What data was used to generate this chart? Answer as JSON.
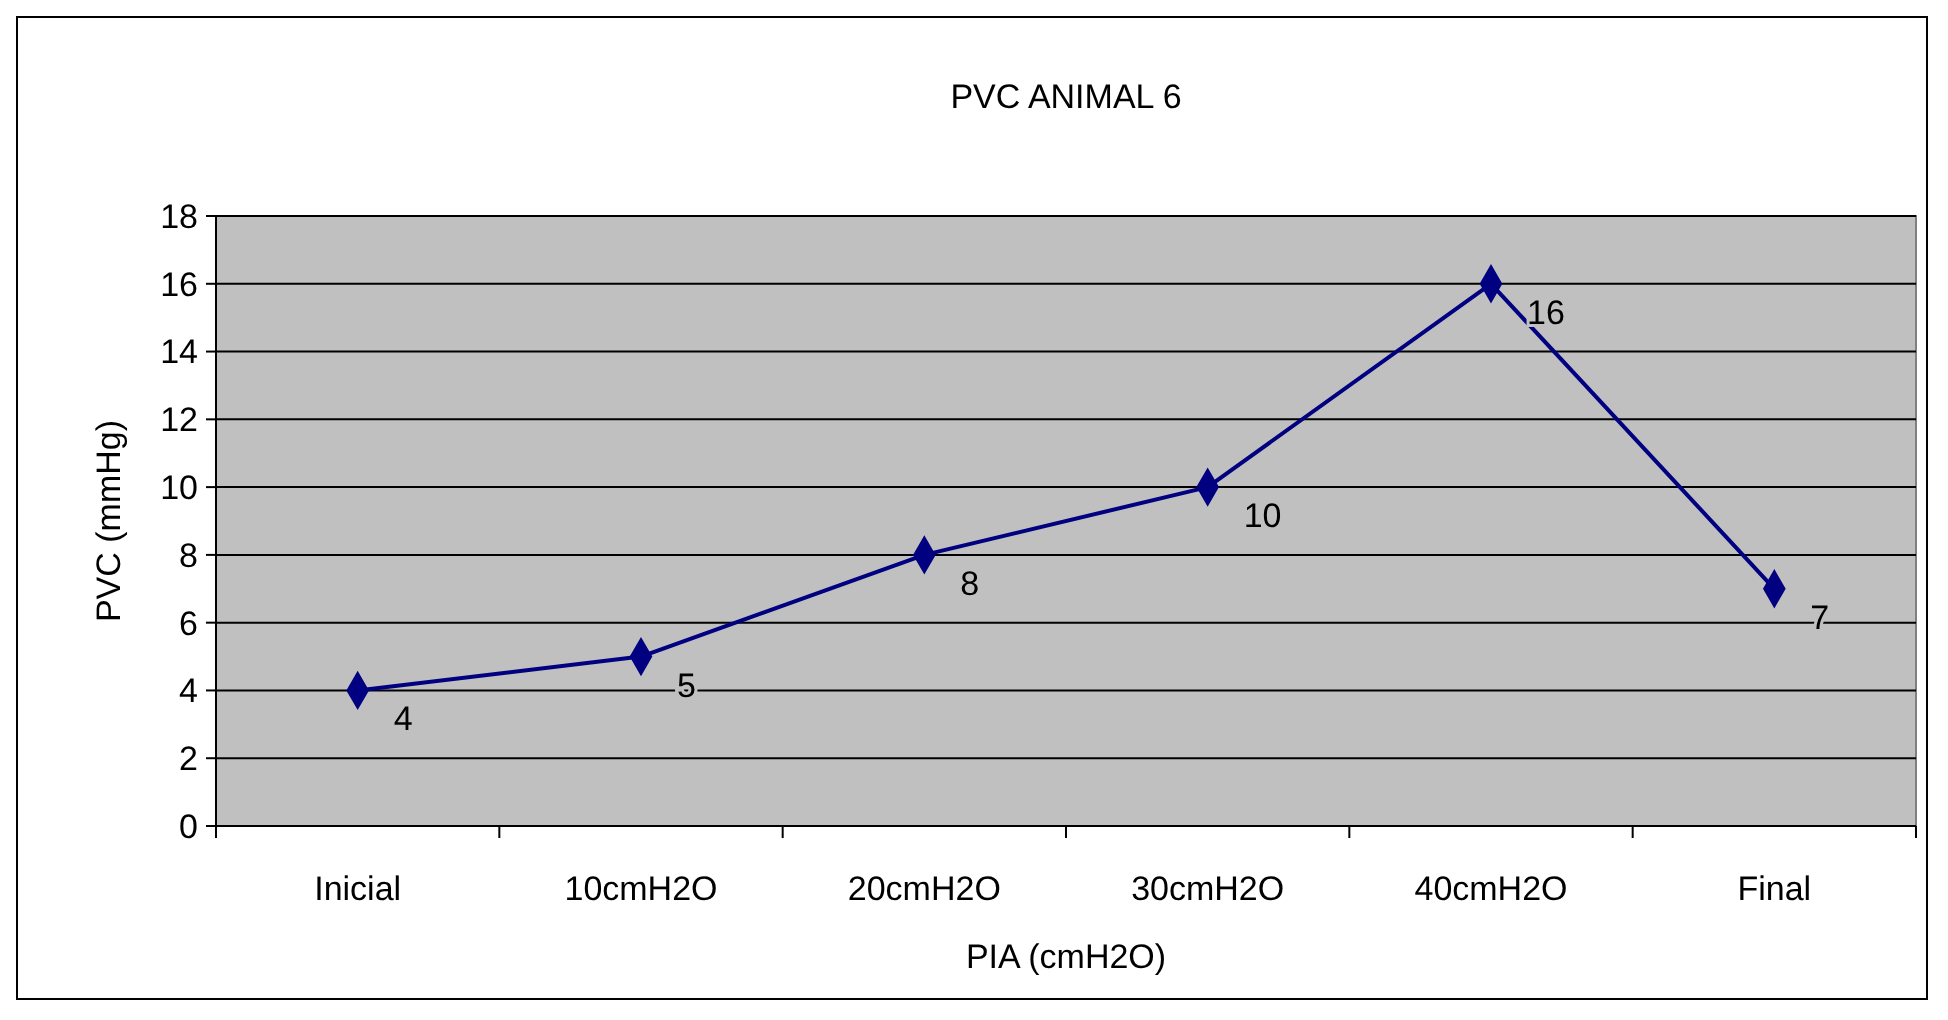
{
  "chart_data": {
    "type": "line",
    "title": "PVC  ANIMAL  6",
    "xlabel": "PIA  (cmH2O)",
    "ylabel": "PVC  (mmHg)",
    "categories": [
      "Inicial",
      "10cmH2O",
      "20cmH2O",
      "30cmH2O",
      "40cmH2O",
      "Final"
    ],
    "series": [
      {
        "color": "#000080",
        "values": [
          4,
          5,
          8,
          10,
          16,
          7
        ]
      }
    ],
    "ylim": [
      0,
      18
    ],
    "yticks": [
      0,
      2,
      4,
      6,
      8,
      10,
      12,
      14,
      16,
      18
    ],
    "grid": "y",
    "marker": "diamond",
    "line_style": "solid",
    "data_labels": true
  }
}
